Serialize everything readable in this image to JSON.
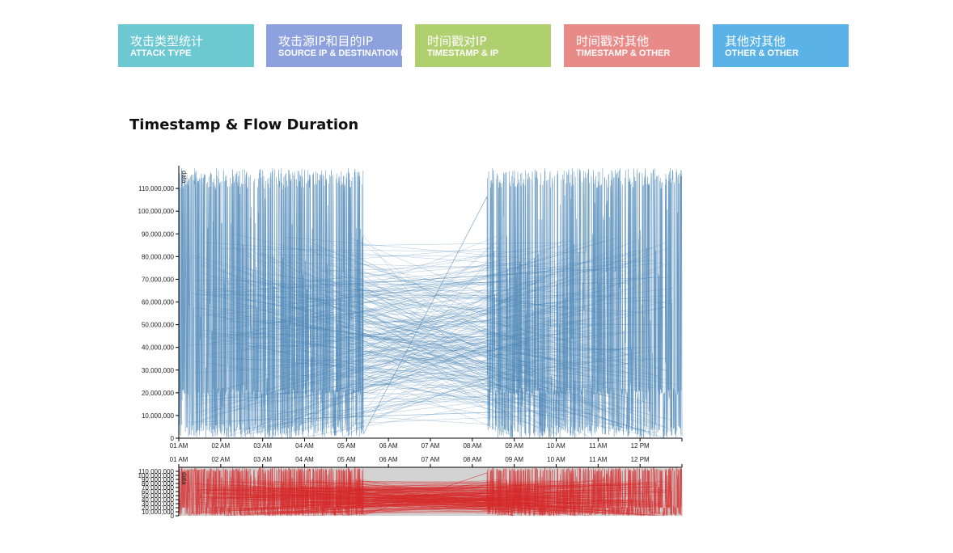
{
  "tabs": [
    {
      "zh": "攻击类型统计",
      "en": "ATTACK TYPE",
      "color": "#6cc8d1"
    },
    {
      "zh": "攻击源IP和目的IP",
      "en": "SOURCE IP & DESTINATION IP",
      "color": "#8da1df"
    },
    {
      "zh": "时间戳对IP",
      "en": "TIMESTAMP & IP",
      "color": "#b0cf6e"
    },
    {
      "zh": "时间戳对其他",
      "en": "TIMESTAMP & OTHER",
      "color": "#e88a87"
    },
    {
      "zh": "其他对其他",
      "en": "OTHER & OTHER",
      "color": "#5bb2e6"
    }
  ],
  "page_title": "Timestamp & Flow Duration",
  "chart_data": [
    {
      "type": "line",
      "role": "main",
      "title": "",
      "ylabel": "data",
      "xlabel": "",
      "x_ticks": [
        "01 AM",
        "02 AM",
        "03 AM",
        "04 AM",
        "05 AM",
        "06 AM",
        "07 AM",
        "08 AM",
        "09 AM",
        "10 AM",
        "11 AM",
        "12 PM"
      ],
      "x_range_hours": [
        1,
        13
      ],
      "ylim": [
        0,
        120000000
      ],
      "y_ticks": [
        "0",
        "10,000,000",
        "20,000,000",
        "30,000,000",
        "40,000,000",
        "50,000,000",
        "60,000,000",
        "70,000,000",
        "80,000,000",
        "90,000,000",
        "100,000,000",
        "110,000,000"
      ],
      "color": "#4682b4",
      "series": [
        {
          "segments": [
            {
              "start": 1.0,
              "end": 5.4,
              "density": "high"
            },
            {
              "start": 8.35,
              "end": 13.0,
              "density": "high"
            }
          ]
        }
      ]
    },
    {
      "type": "line",
      "role": "overview",
      "ylabel": "data",
      "x_ticks": [
        "01 AM",
        "02 AM",
        "03 AM",
        "04 AM",
        "05 AM",
        "06 AM",
        "07 AM",
        "08 AM",
        "09 AM",
        "10 AM",
        "11 AM",
        "12 PM"
      ],
      "ylim": [
        0,
        120000000
      ],
      "y_ticks": [
        "0",
        "10,000,000",
        "20,000,000",
        "30,000,000",
        "40,000,000",
        "50,000,000",
        "60,000,000",
        "70,000,000",
        "80,000,000",
        "90,000,000",
        "100,000,000",
        "110,000,000"
      ],
      "color": "#d62728",
      "brush_color": "#d3d3d3"
    }
  ]
}
